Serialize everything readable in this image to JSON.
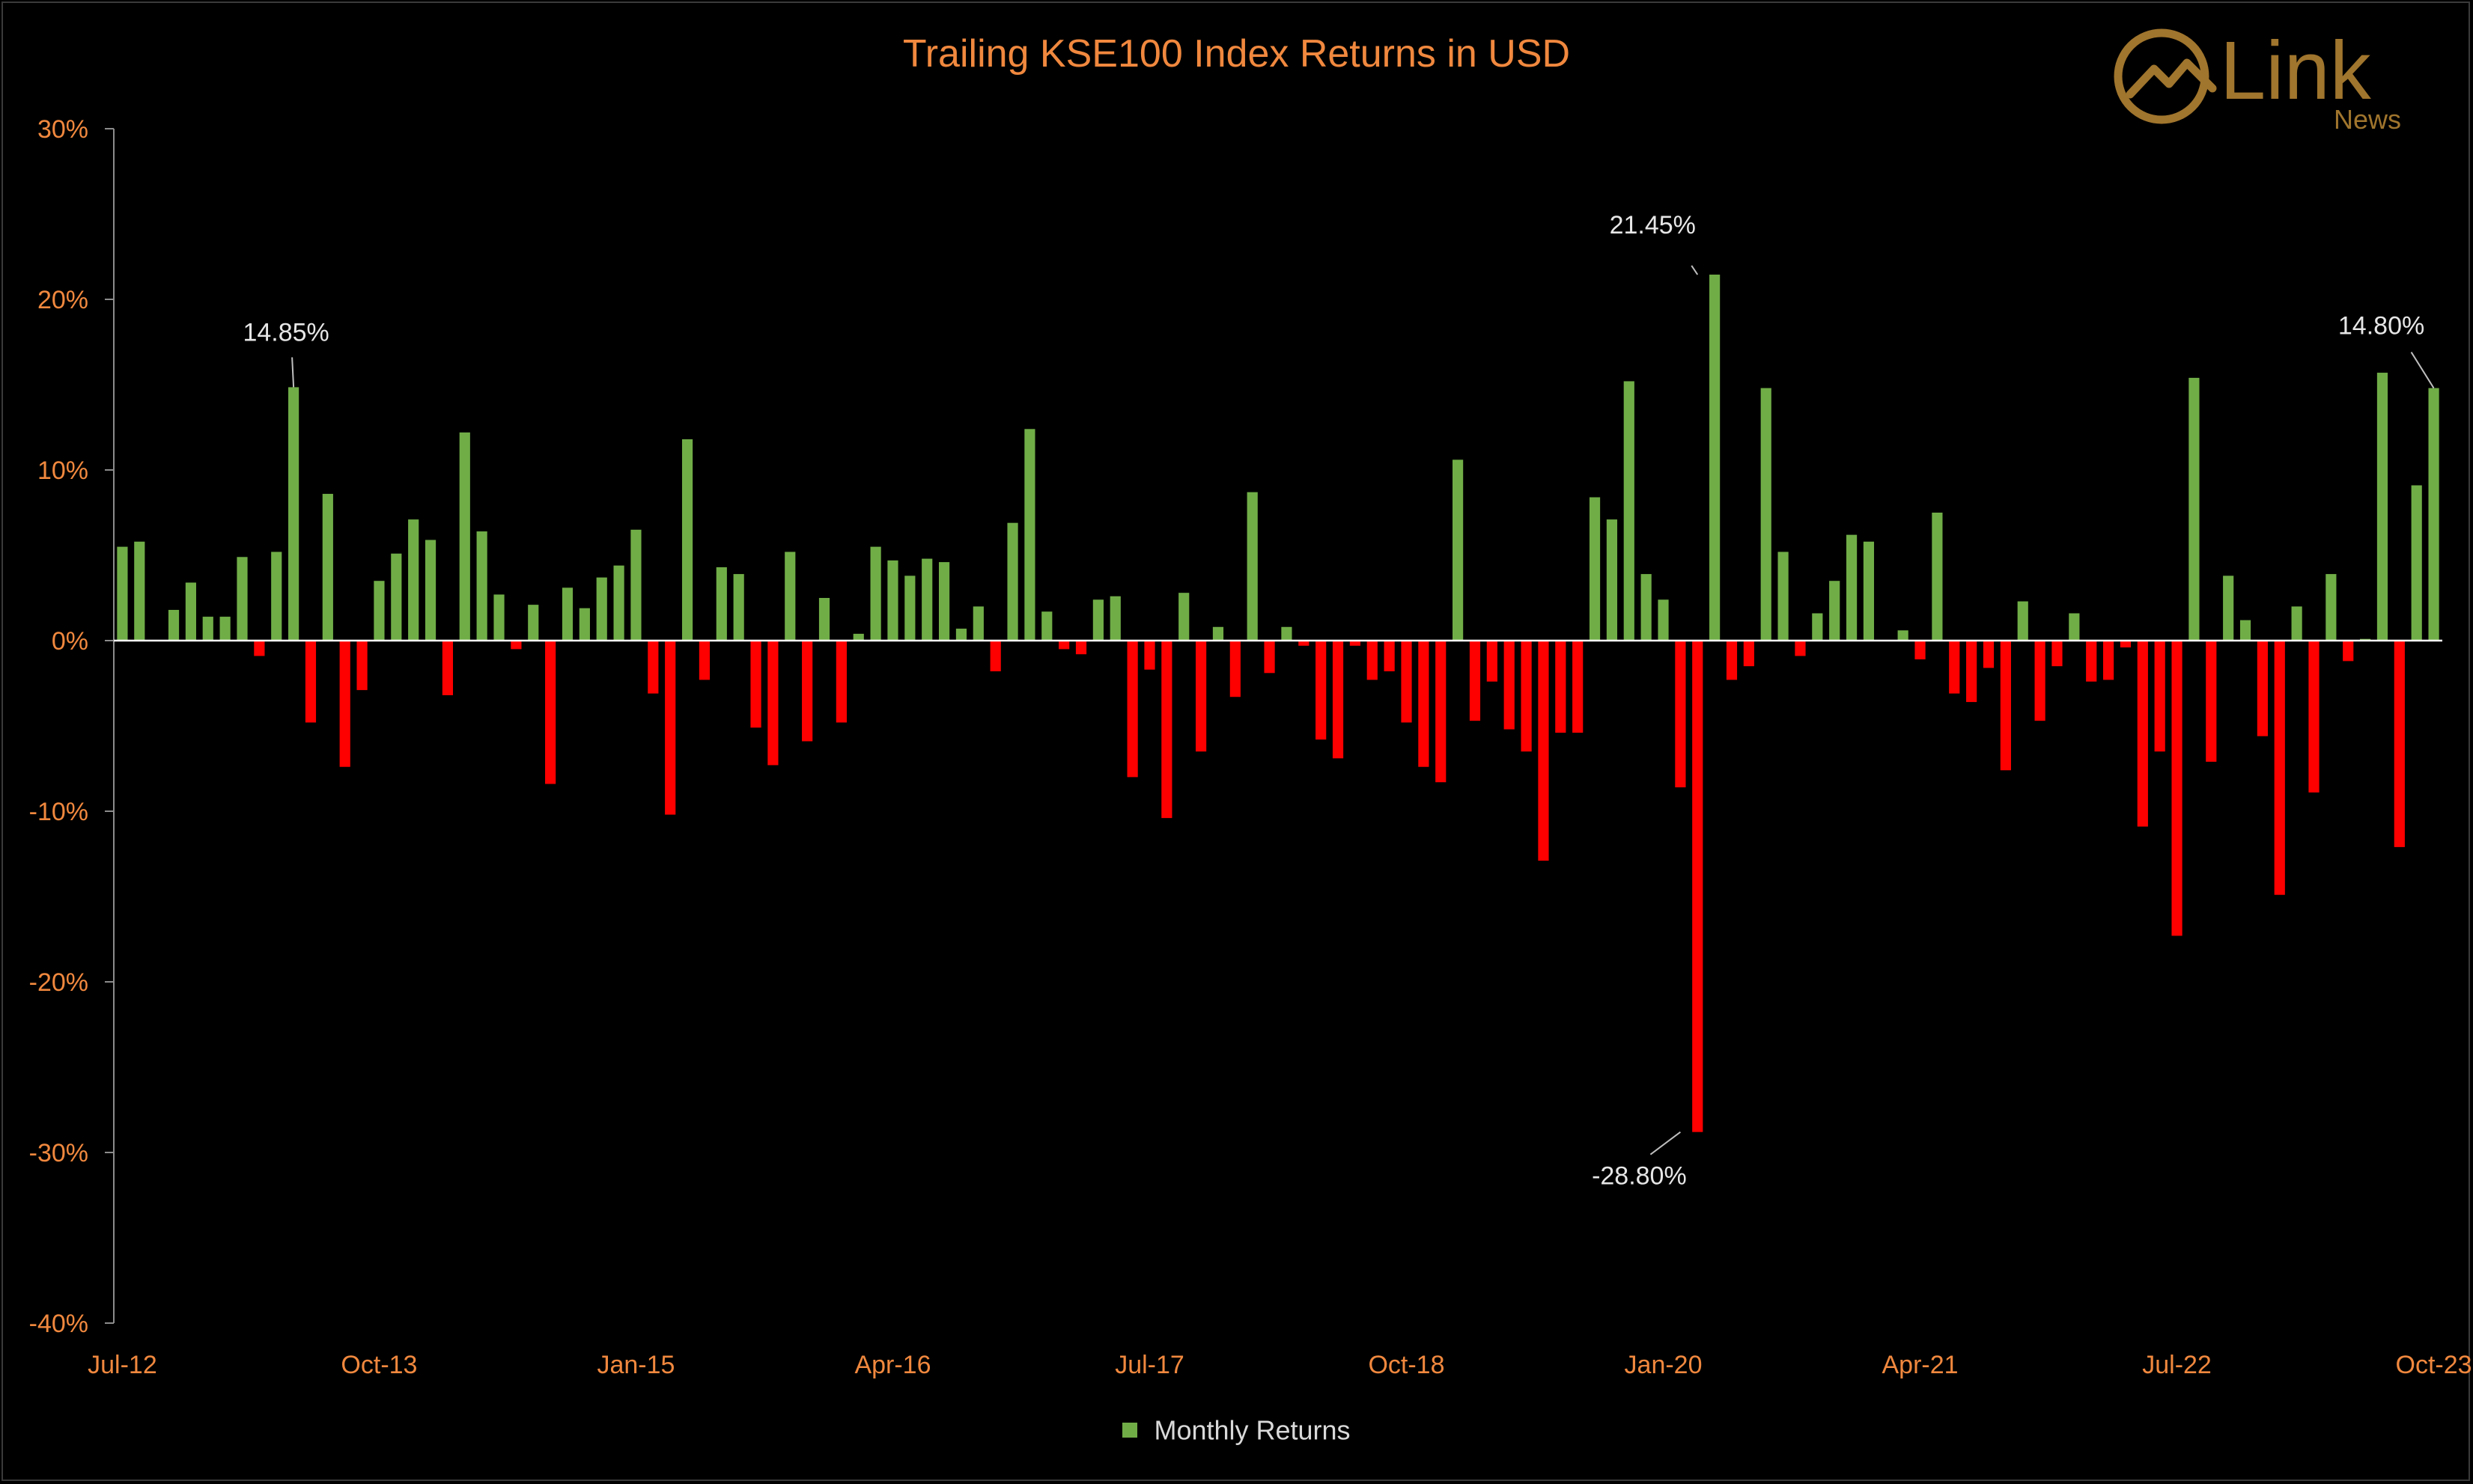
{
  "chart_data": {
    "type": "bar",
    "title": "Trailing KSE100 Index Returns in USD",
    "ylabel": "",
    "xlabel": "",
    "ylim": [
      -40,
      30
    ],
    "y_ticks": [
      "30%",
      "20%",
      "10%",
      "0%",
      "-10%",
      "-20%",
      "-30%",
      "-40%"
    ],
    "y_tick_values": [
      30,
      20,
      10,
      0,
      -10,
      -20,
      -30,
      -40
    ],
    "x_tick_labels": [
      "Jul-12",
      "Oct-13",
      "Jan-15",
      "Apr-16",
      "Jul-17",
      "Oct-18",
      "Jan-20",
      "Apr-21",
      "Jul-22",
      "Oct-23"
    ],
    "x_tick_indices": [
      0,
      15,
      30,
      45,
      60,
      75,
      90,
      105,
      120,
      135
    ],
    "grid": false,
    "legend_position": "bottom",
    "positive_color": "#70AD47",
    "negative_color": "#FF0000",
    "series": [
      {
        "name": "Monthly Returns",
        "start": "Jul-12",
        "end": "Oct-23",
        "values": [
          5.5,
          5.8,
          0,
          1.8,
          3.4,
          1.4,
          1.4,
          4.9,
          -0.9,
          5.2,
          14.85,
          -4.8,
          8.6,
          -7.4,
          -2.9,
          3.5,
          5.1,
          7.1,
          5.9,
          -3.2,
          12.2,
          6.4,
          2.7,
          -0.5,
          2.1,
          -8.4,
          3.1,
          1.9,
          3.7,
          4.4,
          6.5,
          -3.1,
          -10.2,
          11.8,
          -2.3,
          4.3,
          3.9,
          -5.1,
          -7.3,
          5.2,
          -5.9,
          2.5,
          -4.8,
          0.4,
          5.5,
          4.7,
          3.8,
          4.8,
          4.6,
          0.7,
          2.0,
          -1.8,
          6.9,
          12.4,
          1.7,
          -0.5,
          -0.8,
          2.4,
          2.6,
          -8.0,
          -1.7,
          -10.4,
          2.8,
          -6.5,
          0.8,
          -3.3,
          8.7,
          -1.9,
          0.8,
          -0.3,
          -5.8,
          -6.9,
          -0.3,
          -2.3,
          -1.8,
          -4.8,
          -7.4,
          -8.3,
          10.6,
          -4.7,
          -2.4,
          -5.2,
          -6.5,
          -12.9,
          -5.4,
          -5.4,
          8.4,
          7.1,
          15.2,
          3.9,
          2.4,
          -8.6,
          -28.8,
          21.45,
          -2.3,
          -1.5,
          14.8,
          5.2,
          -0.9,
          1.6,
          3.5,
          6.2,
          5.8,
          0,
          0.6,
          -1.1,
          7.5,
          -3.1,
          -3.6,
          -1.6,
          -7.6,
          2.3,
          -4.7,
          -1.5,
          1.6,
          -2.4,
          -2.3,
          -0.4,
          -10.9,
          -6.5,
          -17.3,
          15.4,
          -7.1,
          3.8,
          1.2,
          -5.6,
          -14.9,
          2.0,
          -8.9,
          3.9,
          -1.2,
          0.1,
          15.7,
          -12.1,
          9.1,
          14.8
        ]
      }
    ],
    "annotations": [
      {
        "text": "14.85%",
        "index": 10,
        "value": 14.85
      },
      {
        "text": "21.45%",
        "index": 92,
        "value": 21.45
      },
      {
        "text": "-28.80%",
        "index": 91,
        "value": -28.8
      },
      {
        "text": "14.80%",
        "index": 135,
        "value": 14.8
      }
    ]
  },
  "logo": {
    "brand_name": "Link",
    "sub_name": "News",
    "color": "#A0752D"
  }
}
